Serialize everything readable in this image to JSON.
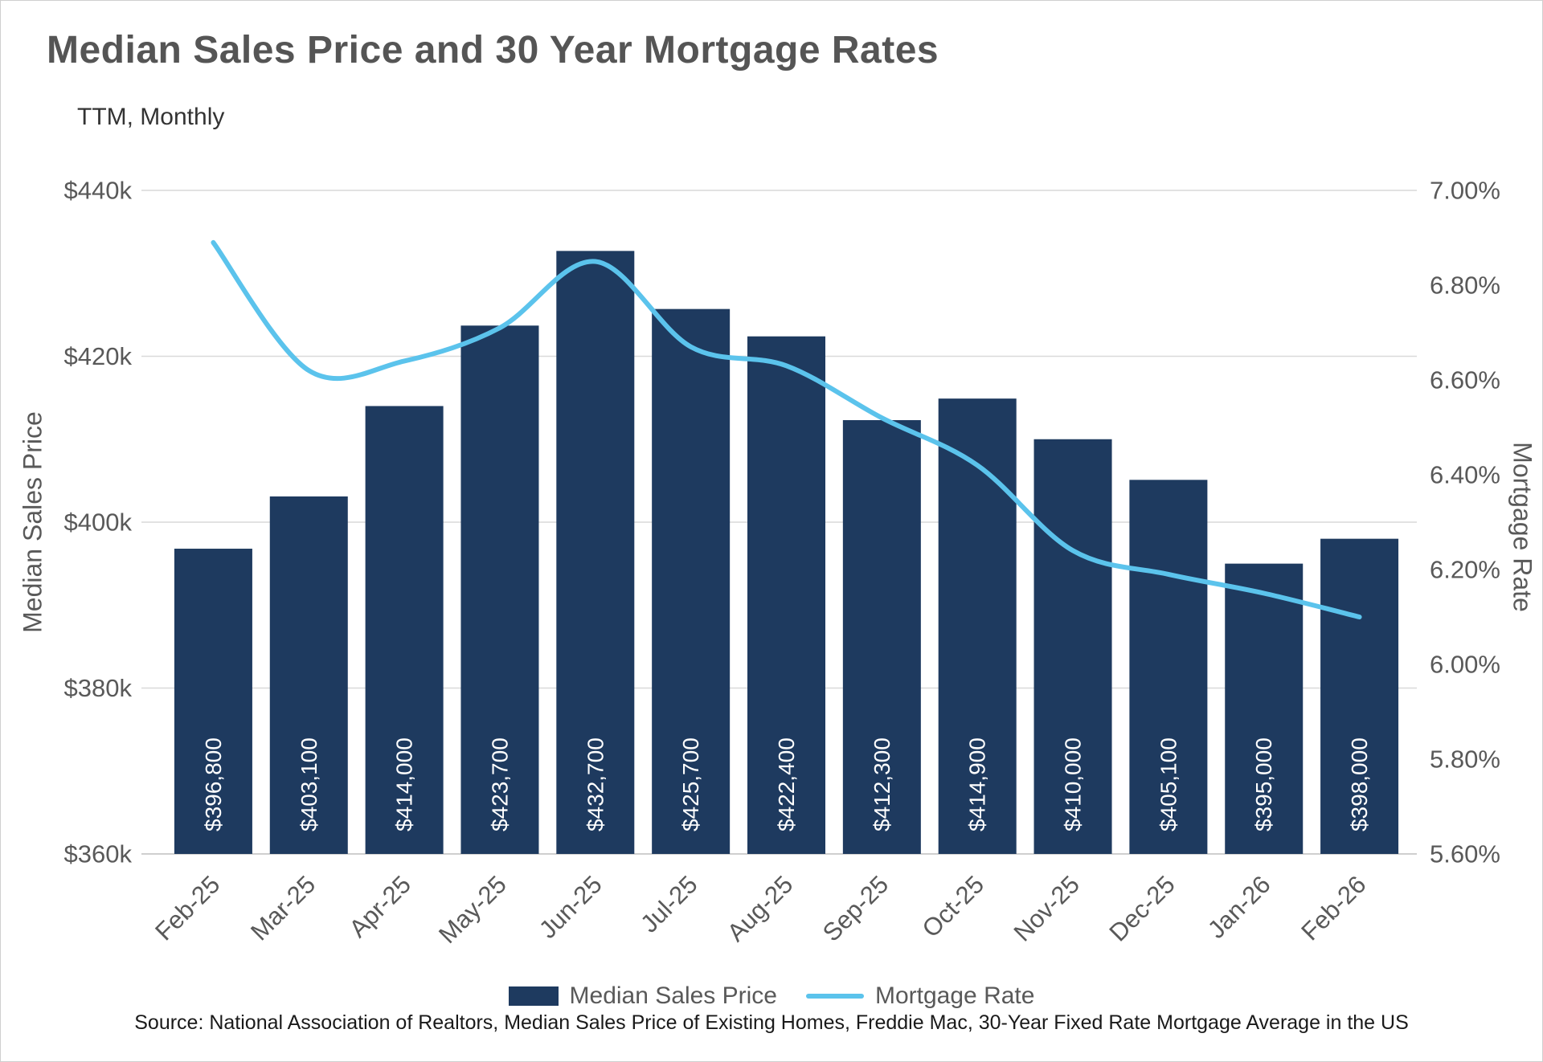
{
  "title": "Median Sales Price and 30 Year Mortgage Rates",
  "subtitle": "TTM, Monthly",
  "source": "Source: National Association of Realtors, Median Sales Price of Existing Homes, Freddie Mac, 30-Year Fixed Rate Mortgage Average in the US",
  "colors": {
    "bar": "#1E3A5F",
    "line": "#5BC3EC",
    "gridline": "#D9D9D9",
    "axis_line": "#BFBFBF",
    "axis_text": "#595959",
    "title_text": "#555555",
    "bar_label_text": "#FFFFFF"
  },
  "chart_data": {
    "type": "combo",
    "subtypes": [
      "bar",
      "line"
    ],
    "categories": [
      "Feb-25",
      "Mar-25",
      "Apr-25",
      "May-25",
      "Jun-25",
      "Jul-25",
      "Aug-25",
      "Sep-25",
      "Oct-25",
      "Nov-25",
      "Dec-25",
      "Jan-26",
      "Feb-26"
    ],
    "series": [
      {
        "name": "Median Sales Price",
        "type": "bar",
        "axis": "left",
        "values": [
          396800,
          403100,
          414000,
          423700,
          432700,
          425700,
          422400,
          412300,
          414900,
          410000,
          405100,
          395000,
          398000
        ],
        "labels": [
          "$396,800",
          "$403,100",
          "$414,000",
          "$423,700",
          "$432,700",
          "$425,700",
          "$422,400",
          "$412,300",
          "$414,900",
          "$410,000",
          "$405,100",
          "$395,000",
          "$398,000"
        ]
      },
      {
        "name": "Mortgage Rate",
        "type": "line",
        "axis": "right",
        "values": [
          6.89,
          6.62,
          6.64,
          6.71,
          6.85,
          6.67,
          6.63,
          6.52,
          6.42,
          6.24,
          6.19,
          6.15,
          6.1
        ]
      }
    ],
    "left_axis": {
      "title": "Median Sales Price",
      "min": 360000,
      "max": 440000,
      "tick_step": 20000,
      "tick_labels": [
        "$360k",
        "$380k",
        "$400k",
        "$420k",
        "$440k"
      ]
    },
    "right_axis": {
      "title": "Mortgage Rate",
      "min": 5.6,
      "max": 7.0,
      "tick_step": 0.2,
      "tick_labels": [
        "5.60%",
        "5.80%",
        "6.00%",
        "6.20%",
        "6.40%",
        "6.60%",
        "6.80%",
        "7.00%"
      ]
    },
    "grid": true,
    "legend_position": "bottom"
  }
}
